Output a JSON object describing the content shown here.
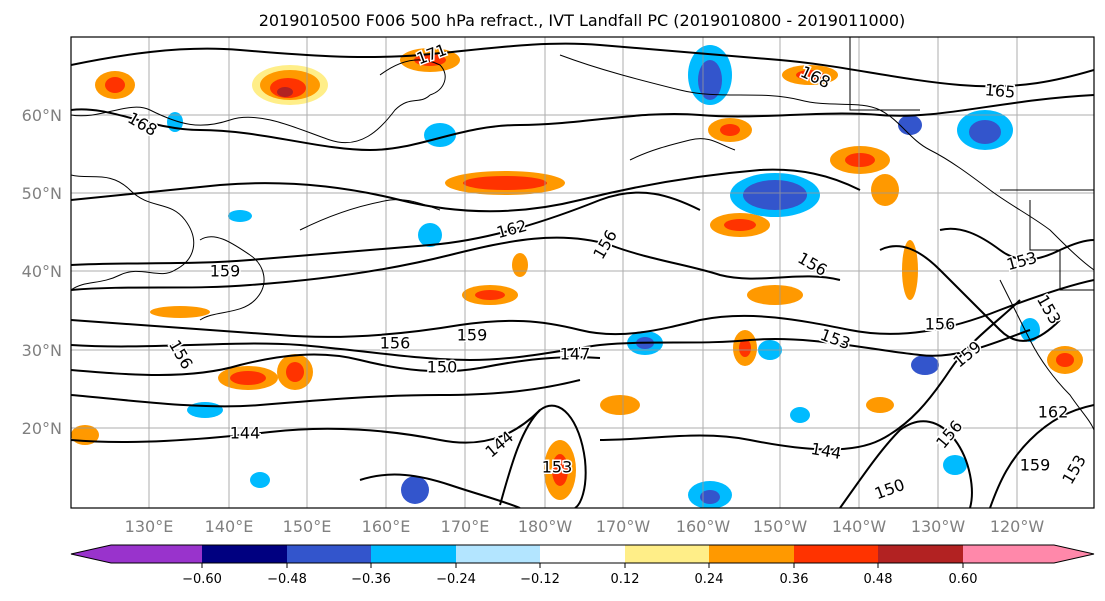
{
  "title": "2019010500 F006 500 hPa refract., IVT Landfall PC (2019010800 - 2019011000)",
  "map": {
    "lon_labels": [
      "130°E",
      "140°E",
      "150°E",
      "160°E",
      "170°E",
      "180°W",
      "170°W",
      "160°W",
      "150°W",
      "140°W",
      "130°W",
      "120°W"
    ],
    "lat_labels": [
      "20°N",
      "30°N",
      "40°N",
      "50°N",
      "60°N"
    ]
  },
  "contour_labels": [
    "171",
    "168",
    "168",
    "165",
    "162",
    "159",
    "156",
    "156",
    "156",
    "159",
    "156",
    "153",
    "153",
    "156",
    "150",
    "147",
    "153",
    "159",
    "162",
    "144",
    "144",
    "144",
    "153",
    "150",
    "156",
    "159",
    "153"
  ],
  "colorbar": {
    "colors": [
      "#9933cc",
      "#000080",
      "#3355cc",
      "#00bbff",
      "#b3e5ff",
      "#ffffff",
      "#ffee88",
      "#ff9900",
      "#ff3300",
      "#b22222",
      "#ff88aa"
    ],
    "ticks": [
      "−0.60",
      "−0.48",
      "−0.36",
      "−0.24",
      "−0.12",
      "0.12",
      "0.24",
      "0.36",
      "0.48",
      "0.60"
    ]
  },
  "colors": {
    "contour": "#000000",
    "grid": "#999999",
    "coast": "#000000"
  }
}
